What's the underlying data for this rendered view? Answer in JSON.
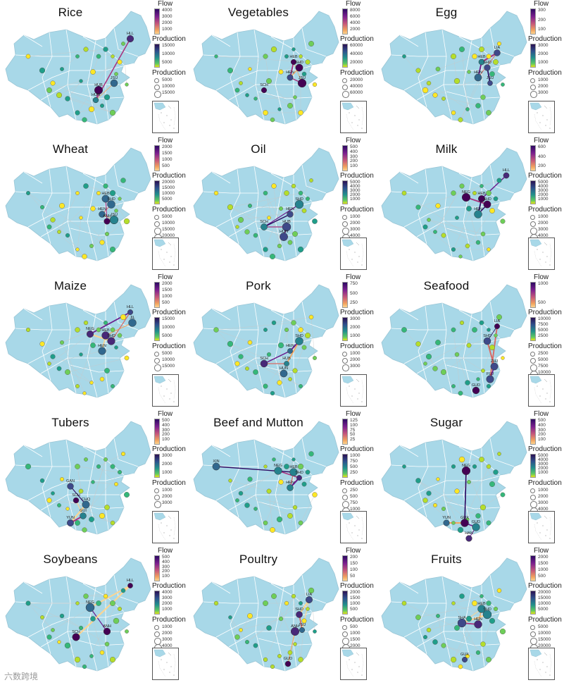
{
  "colors": {
    "land": "#a8d8e8",
    "border": "#ffffff",
    "ocean": "#ffffff"
  },
  "panels": [
    {
      "title": "Rice",
      "flow": {
        "title": "Flow",
        "ticks": [
          "4000",
          "3000",
          "2000",
          "1000"
        ]
      },
      "prod": {
        "title": "Production",
        "ticks": [
          "15000",
          "10000",
          "5000"
        ]
      },
      "size": {
        "title": "Production",
        "labels": [
          "5000",
          "10000",
          "15000"
        ]
      },
      "nodes": [
        "HLL",
        "HUB",
        "HUN",
        "JSU"
      ]
    },
    {
      "title": "Vegetables",
      "flow": {
        "title": "Flow",
        "ticks": [
          "8000",
          "6000",
          "4000",
          "2000"
        ]
      },
      "prod": {
        "title": "Production",
        "ticks": [
          "60000",
          "40000",
          "20000"
        ]
      },
      "size": {
        "title": "Production",
        "labels": [
          "20000",
          "40000",
          "60000"
        ]
      },
      "nodes": [
        "HEB",
        "SHD",
        "HEN",
        "JSU",
        "SCH"
      ]
    },
    {
      "title": "Egg",
      "flow": {
        "title": "Flow",
        "ticks": [
          "300",
          "200",
          "100"
        ]
      },
      "prod": {
        "title": "Production",
        "ticks": [
          "3000",
          "2000",
          "1000"
        ]
      },
      "size": {
        "title": "Production",
        "labels": [
          "1000",
          "2000",
          "3000"
        ]
      },
      "nodes": [
        "LIA",
        "HEB",
        "SHD",
        "HEN",
        "JSU"
      ]
    },
    {
      "title": "Wheat",
      "flow": {
        "title": "Flow",
        "ticks": [
          "2000",
          "1500",
          "1000",
          "500"
        ]
      },
      "prod": {
        "title": "Production",
        "ticks": [
          "20000",
          "15000",
          "10000",
          "5000"
        ]
      },
      "size": {
        "title": "Production",
        "labels": [
          "5000",
          "10000",
          "15000",
          "20000"
        ]
      },
      "nodes": [
        "HEB",
        "SHD",
        "HEN",
        "ANH",
        "JSU"
      ]
    },
    {
      "title": "Oil",
      "flow": {
        "title": "Flow",
        "ticks": [
          "500",
          "400",
          "300",
          "200",
          "100"
        ]
      },
      "prod": {
        "title": "Production",
        "ticks": [
          "5000",
          "4000",
          "3000",
          "2000",
          "1000"
        ]
      },
      "size": {
        "title": "Production",
        "labels": [
          "1000",
          "2000",
          "3000",
          "4000",
          "5000"
        ]
      },
      "nodes": [
        "SHD",
        "HEN",
        "SCH",
        "HUB",
        "HUN"
      ]
    },
    {
      "title": "Milk",
      "flow": {
        "title": "Flow",
        "ticks": [
          "600",
          "400",
          "200"
        ]
      },
      "prod": {
        "title": "Production",
        "ticks": [
          "5000",
          "4000",
          "3000",
          "2000",
          "1000"
        ]
      },
      "size": {
        "title": "Production",
        "labels": [
          "1000",
          "2000",
          "3000",
          "4000",
          "5000"
        ]
      },
      "nodes": [
        "HLL",
        "NEG",
        "HEB",
        "SHD",
        "HEN"
      ]
    },
    {
      "title": "Maize",
      "flow": {
        "title": "Flow",
        "ticks": [
          "2000",
          "1500",
          "1000",
          "500"
        ]
      },
      "prod": {
        "title": "Production",
        "ticks": [
          "15000",
          "10000",
          "5000"
        ]
      },
      "size": {
        "title": "Production",
        "labels": [
          "5000",
          "10000",
          "15000"
        ]
      },
      "nodes": [
        "HLL",
        "JIL",
        "NEG",
        "HEB",
        "SHD",
        "HEN"
      ]
    },
    {
      "title": "Pork",
      "flow": {
        "title": "Flow",
        "ticks": [
          "750",
          "500",
          "250"
        ]
      },
      "prod": {
        "title": "Production",
        "ticks": [
          "3000",
          "2000",
          "1000"
        ]
      },
      "size": {
        "title": "Production",
        "labels": [
          "1000",
          "2000",
          "3000"
        ]
      },
      "nodes": [
        "SHD",
        "HEN",
        "SCH",
        "HUB",
        "HUN"
      ]
    },
    {
      "title": "Seafood",
      "flow": {
        "title": "Flow",
        "ticks": [
          "1000",
          "500"
        ]
      },
      "prod": {
        "title": "Production",
        "ticks": [
          "10000",
          "7500",
          "5000",
          "2500"
        ]
      },
      "size": {
        "title": "Production",
        "labels": [
          "2500",
          "5000",
          "7500",
          "10000"
        ]
      },
      "nodes": [
        "LIA",
        "SHD",
        "ZHJ",
        "FUJ",
        "GUD"
      ]
    },
    {
      "title": "Tubers",
      "flow": {
        "title": "Flow",
        "ticks": [
          "500",
          "400",
          "300",
          "200",
          "100"
        ]
      },
      "prod": {
        "title": "Production",
        "ticks": [
          "3000",
          "2000",
          "1000"
        ]
      },
      "size": {
        "title": "Production",
        "labels": [
          "1000",
          "2000",
          "3000"
        ]
      },
      "nodes": [
        "GAN",
        "SCH",
        "CHQ",
        "GUI",
        "YUN"
      ]
    },
    {
      "title": "Beef and Mutton",
      "flow": {
        "title": "Flow",
        "ticks": [
          "125",
          "100",
          "75",
          "50",
          "25"
        ]
      },
      "prod": {
        "title": "Production",
        "ticks": [
          "1000",
          "750",
          "500",
          "250"
        ]
      },
      "size": {
        "title": "Production",
        "labels": [
          "250",
          "500",
          "750",
          "1000"
        ]
      },
      "nodes": [
        "XIN",
        "NEG",
        "HEB",
        "SHD",
        "HEN"
      ]
    },
    {
      "title": "Sugar",
      "flow": {
        "title": "Flow",
        "ticks": [
          "500",
          "400",
          "300",
          "200",
          "100"
        ]
      },
      "prod": {
        "title": "Production",
        "ticks": [
          "5000",
          "4000",
          "3000",
          "2000",
          "1000"
        ]
      },
      "size": {
        "title": "Production",
        "labels": [
          "1000",
          "2000",
          "3000",
          "4000",
          "5000"
        ]
      },
      "nodes": [
        "NEG",
        "YUN",
        "GUX",
        "GUD",
        "HAN"
      ]
    },
    {
      "title": "Soybeans",
      "flow": {
        "title": "Flow",
        "ticks": [
          "500",
          "400",
          "300",
          "200",
          "100"
        ]
      },
      "prod": {
        "title": "Production",
        "ticks": [
          "4000",
          "3000",
          "2000",
          "1000"
        ]
      },
      "size": {
        "title": "Production",
        "labels": [
          "1000",
          "2000",
          "3000",
          "4000"
        ]
      },
      "nodes": [
        "HLL",
        "NEG",
        "SCH",
        "ANH"
      ]
    },
    {
      "title": "Poultry",
      "flow": {
        "title": "Flow",
        "ticks": [
          "200",
          "150",
          "100",
          "50"
        ]
      },
      "prod": {
        "title": "Production",
        "ticks": [
          "2000",
          "1500",
          "1000",
          "500"
        ]
      },
      "size": {
        "title": "Production",
        "labels": [
          "500",
          "1000",
          "1500",
          "2000"
        ]
      },
      "nodes": [
        "LIA",
        "SHD",
        "ANH",
        "JSU",
        "GUD"
      ]
    },
    {
      "title": "Fruits",
      "flow": {
        "title": "Flow",
        "ticks": [
          "2000",
          "1500",
          "1000",
          "500"
        ]
      },
      "prod": {
        "title": "Production",
        "ticks": [
          "20000",
          "15000",
          "10000",
          "5000"
        ]
      },
      "size": {
        "title": "Production",
        "labels": [
          "5000",
          "10000",
          "15000",
          "20000"
        ]
      },
      "nodes": [
        "HEB",
        "SHD",
        "SHA",
        "HEN",
        "GUX"
      ]
    }
  ],
  "watermark": "六数跨境"
}
